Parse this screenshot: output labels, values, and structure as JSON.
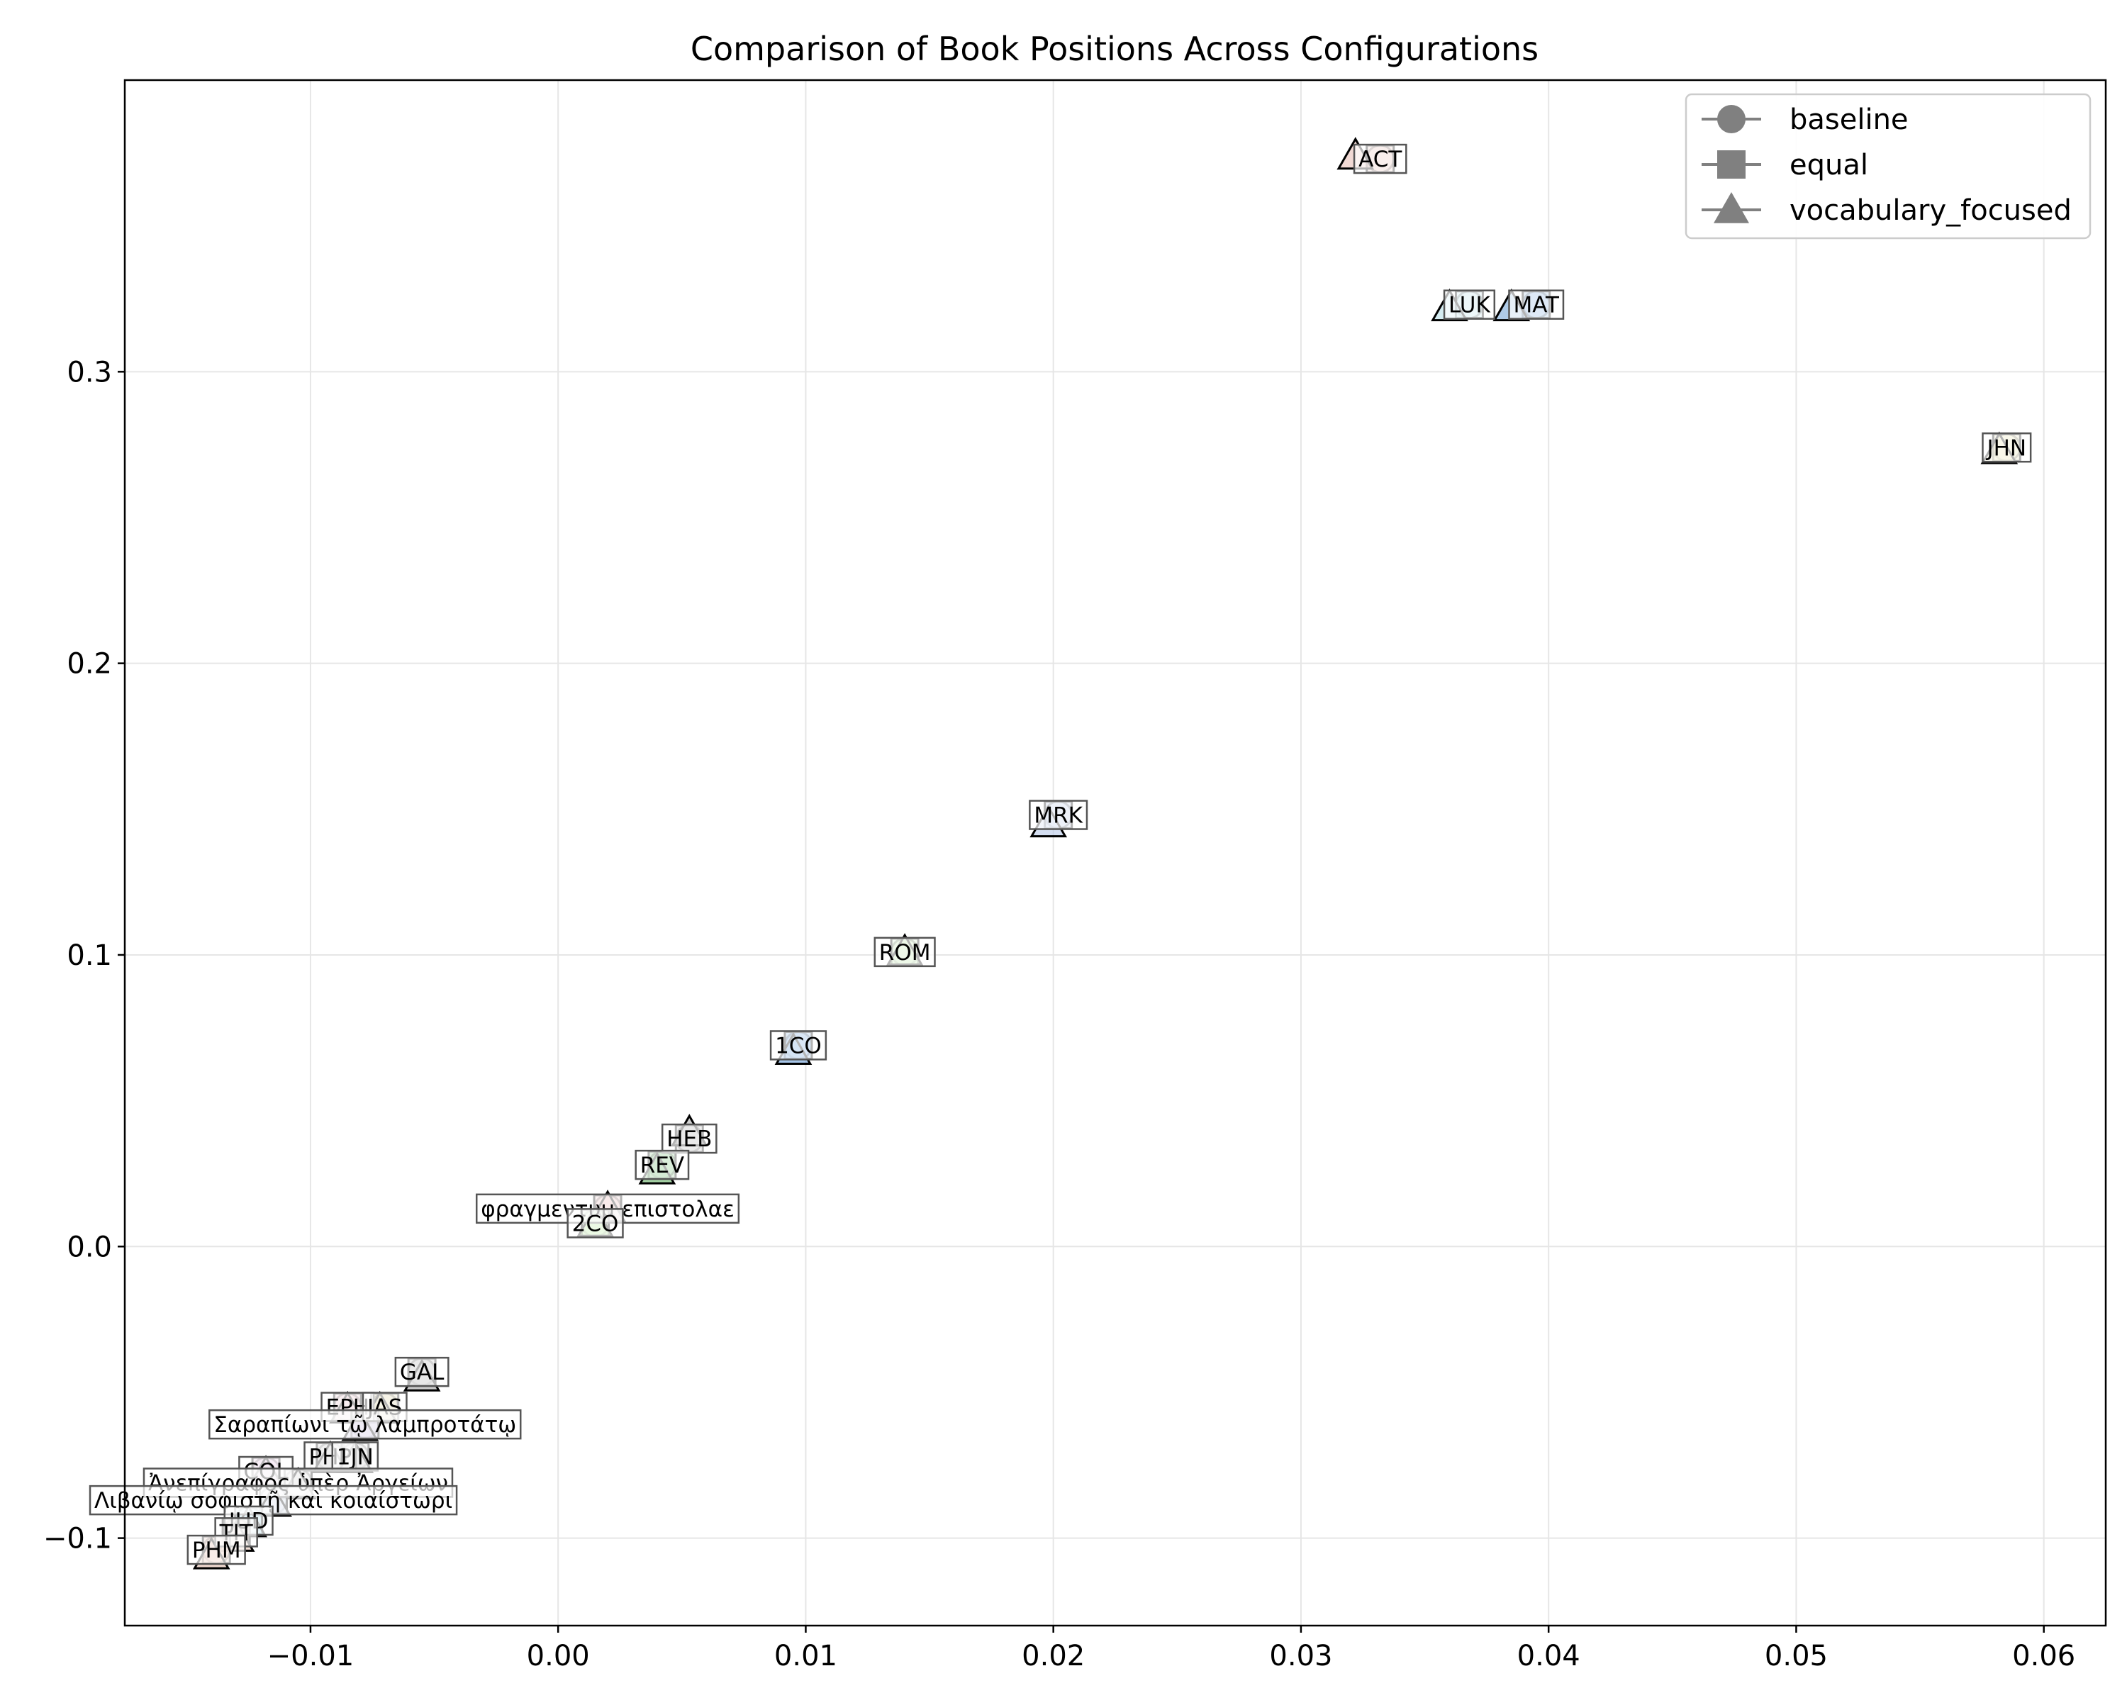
{
  "chart_data": {
    "type": "scatter",
    "title": "Comparison of Book Positions Across Configurations",
    "xlabel": "",
    "ylabel": "",
    "xlim": [
      -0.0175,
      0.0625
    ],
    "ylim": [
      -0.13,
      0.4
    ],
    "xticks": [
      -0.01,
      0.0,
      0.01,
      0.02,
      0.03,
      0.04,
      0.05,
      0.06
    ],
    "xtick_labels": [
      "−0.01",
      "0.00",
      "0.01",
      "0.02",
      "0.03",
      "0.04",
      "0.05",
      "0.06"
    ],
    "yticks": [
      -0.1,
      0.0,
      0.1,
      0.2,
      0.3
    ],
    "ytick_labels": [
      "−0.1",
      "0.0",
      "0.1",
      "0.2",
      "0.3"
    ],
    "grid": true,
    "legend_position": "top-right",
    "legend": [
      {
        "name": "baseline",
        "marker": "circle"
      },
      {
        "name": "equal",
        "marker": "square"
      },
      {
        "name": "vocabulary_focused",
        "marker": "triangle"
      }
    ],
    "legend_color": "#808080",
    "points": [
      {
        "label": "ACT",
        "color": "#e8bfb8",
        "positions": {
          "baseline": [
            0.0332,
            0.373
          ],
          "equal": [
            0.0332,
            0.373
          ],
          "vocabulary_focused": [
            0.0322,
            0.374
          ]
        }
      },
      {
        "label": "LUK",
        "color": "#b8e0e8",
        "positions": {
          "baseline": [
            0.0368,
            0.323
          ],
          "equal": [
            0.0368,
            0.323
          ],
          "vocabulary_focused": [
            0.036,
            0.322
          ]
        }
      },
      {
        "label": "MAT",
        "color": "#7aa8d8",
        "positions": {
          "baseline": [
            0.0395,
            0.323
          ],
          "equal": [
            0.0395,
            0.323
          ],
          "vocabulary_focused": [
            0.0385,
            0.322
          ]
        }
      },
      {
        "label": "JHN",
        "color": "#e8e2b0",
        "positions": {
          "baseline": [
            0.0585,
            0.274
          ],
          "equal": [
            0.0585,
            0.274
          ],
          "vocabulary_focused": [
            0.0582,
            0.273
          ]
        }
      },
      {
        "label": "MRK",
        "color": "#b8c8e8",
        "positions": {
          "baseline": [
            0.0202,
            0.148
          ],
          "equal": [
            0.0202,
            0.148
          ],
          "vocabulary_focused": [
            0.0198,
            0.145
          ]
        }
      },
      {
        "label": "ROM",
        "color": "#c2e8b0",
        "positions": {
          "baseline": [
            0.014,
            0.101
          ],
          "equal": [
            0.014,
            0.101
          ],
          "vocabulary_focused": [
            0.014,
            0.101
          ]
        }
      },
      {
        "label": "1CO",
        "color": "#6a9ed8",
        "positions": {
          "baseline": [
            0.0097,
            0.069
          ],
          "equal": [
            0.0097,
            0.069
          ],
          "vocabulary_focused": [
            0.0095,
            0.067
          ]
        }
      },
      {
        "label": "HEB",
        "color": "#b0b0b0",
        "positions": {
          "baseline": [
            0.0053,
            0.037
          ],
          "equal": [
            0.0053,
            0.037
          ],
          "vocabulary_focused": [
            0.0053,
            0.039
          ]
        }
      },
      {
        "label": "REV",
        "color": "#6ab86a",
        "positions": {
          "baseline": [
            0.0042,
            0.028
          ],
          "equal": [
            0.0042,
            0.028
          ],
          "vocabulary_focused": [
            0.004,
            0.026
          ]
        }
      },
      {
        "label": "φραγμεντυμ επιστολαε",
        "color": "#e8b8b8",
        "positions": {
          "baseline": [
            0.002,
            0.013
          ],
          "equal": [
            0.002,
            0.013
          ],
          "vocabulary_focused": [
            0.002,
            0.013
          ]
        }
      },
      {
        "label": "2CO",
        "color": "#b8e8a0",
        "positions": {
          "baseline": [
            0.0015,
            0.008
          ],
          "equal": [
            0.0015,
            0.008
          ],
          "vocabulary_focused": [
            0.0015,
            0.008
          ]
        }
      },
      {
        "label": "GAL",
        "color": "#a8a8a8",
        "positions": {
          "baseline": [
            -0.0055,
            -0.043
          ],
          "equal": [
            -0.0055,
            -0.043
          ],
          "vocabulary_focused": [
            -0.0055,
            -0.045
          ]
        }
      },
      {
        "label": "EPH",
        "color": "#e8c0c8",
        "positions": {
          "baseline": [
            -0.0085,
            -0.055
          ],
          "equal": [
            -0.0085,
            -0.055
          ],
          "vocabulary_focused": [
            -0.0085,
            -0.056
          ]
        }
      },
      {
        "label": "JAS",
        "color": "#d8d0a0",
        "positions": {
          "baseline": [
            -0.007,
            -0.055
          ],
          "equal": [
            -0.007,
            -0.055
          ],
          "vocabulary_focused": [
            -0.0072,
            -0.056
          ]
        }
      },
      {
        "label": "Σαραπίωνι τῷ λαμπροτάτῳ",
        "color": "#c8c0e0",
        "positions": {
          "baseline": [
            -0.0078,
            -0.061
          ],
          "equal": [
            -0.0078,
            -0.061
          ],
          "vocabulary_focused": [
            -0.008,
            -0.062
          ]
        }
      },
      {
        "label": "PHP",
        "color": "#c8c8c8",
        "positions": {
          "baseline": [
            -0.0092,
            -0.072
          ],
          "equal": [
            -0.0092,
            -0.072
          ],
          "vocabulary_focused": [
            -0.0092,
            -0.073
          ]
        }
      },
      {
        "label": "1JN",
        "color": "#d0d0d0",
        "positions": {
          "baseline": [
            -0.0082,
            -0.072
          ],
          "equal": [
            -0.0082,
            -0.072
          ],
          "vocabulary_focused": [
            -0.0082,
            -0.073
          ]
        }
      },
      {
        "label": "COL",
        "color": "#e0b8d8",
        "positions": {
          "baseline": [
            -0.0118,
            -0.077
          ],
          "equal": [
            -0.0118,
            -0.077
          ],
          "vocabulary_focused": [
            -0.0118,
            -0.078
          ]
        }
      },
      {
        "label": "Ἀνεπίγραφος ὑπὲρ Ἀργείων",
        "color": "#d8d8d8",
        "positions": {
          "baseline": [
            -0.0105,
            -0.081
          ],
          "equal": [
            -0.0105,
            -0.081
          ],
          "vocabulary_focused": [
            -0.0105,
            -0.082
          ]
        }
      },
      {
        "label": "Λιβανίῳ σοφιστῇ καὶ κοιαίστωρι",
        "color": "#d0d8e8",
        "positions": {
          "baseline": [
            -0.0115,
            -0.087
          ],
          "equal": [
            -0.0115,
            -0.087
          ],
          "vocabulary_focused": [
            -0.0115,
            -0.088
          ]
        }
      },
      {
        "label": "JUD",
        "color": "#a8d8e8",
        "positions": {
          "baseline": [
            -0.0125,
            -0.094
          ],
          "equal": [
            -0.0125,
            -0.094
          ],
          "vocabulary_focused": [
            -0.0125,
            -0.095
          ]
        }
      },
      {
        "label": "TIT",
        "color": "#e8c8b8",
        "positions": {
          "baseline": [
            -0.013,
            -0.098
          ],
          "equal": [
            -0.013,
            -0.098
          ],
          "vocabulary_focused": [
            -0.013,
            -0.1
          ]
        }
      },
      {
        "label": "PHM",
        "color": "#e8c0b0",
        "positions": {
          "baseline": [
            -0.0138,
            -0.104
          ],
          "equal": [
            -0.0138,
            -0.104
          ],
          "vocabulary_focused": [
            -0.014,
            -0.106
          ]
        }
      }
    ]
  }
}
